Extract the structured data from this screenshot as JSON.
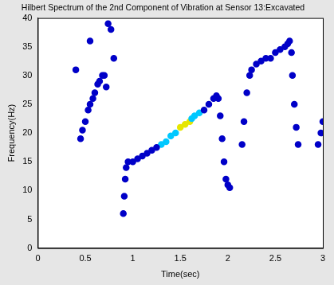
{
  "chart_data": {
    "type": "scatter",
    "title": "Hilbert Spectrum of the 2nd Component of Vibration at Sensor 13:Excavated",
    "x_label": "Time(sec)",
    "y_label": "Frequency(Hz)",
    "xlim": [
      0,
      3
    ],
    "ylim": [
      0,
      40
    ],
    "xticks": [
      0,
      0.5,
      1,
      1.5,
      2,
      2.5,
      3
    ],
    "yticks": [
      0,
      5,
      10,
      15,
      20,
      25,
      30,
      35,
      40
    ],
    "grid": false,
    "series": [
      {
        "color": "#0000c8",
        "marker": "circle",
        "x": [
          0.45,
          0.47,
          0.5,
          0.53,
          0.55,
          0.58,
          0.6,
          0.63,
          0.65,
          0.68,
          0.7,
          0.72,
          0.4,
          0.55,
          0.74,
          0.77,
          0.8,
          0.9,
          0.91,
          0.92,
          0.93,
          0.95,
          1.0,
          1.05,
          1.1,
          1.15,
          1.2,
          1.25,
          1.75,
          1.8,
          1.85,
          1.88,
          1.9,
          1.92,
          1.94,
          1.96,
          1.98,
          2.0,
          2.02,
          2.15,
          2.17,
          2.2,
          2.23,
          2.25,
          2.3,
          2.35,
          2.4,
          2.45,
          2.5,
          2.55,
          2.6,
          2.63,
          2.65,
          2.67,
          2.68,
          2.7,
          2.72,
          2.74,
          2.95,
          2.98,
          3.0
        ],
        "values": [
          19,
          20.5,
          22,
          24,
          25,
          26,
          27,
          28.5,
          29,
          30,
          30,
          28,
          31,
          36,
          39,
          38,
          33,
          6,
          9,
          12,
          14,
          15,
          15,
          15.5,
          16,
          16.5,
          17,
          17.5,
          24,
          25,
          26,
          26.5,
          26,
          23,
          19,
          15,
          12,
          11,
          10.5,
          18,
          22,
          27,
          30,
          31,
          32,
          32.5,
          33,
          33,
          34,
          34.5,
          35,
          35.5,
          36,
          34,
          30,
          25,
          21,
          18,
          18,
          20,
          22
        ]
      },
      {
        "color": "#00c8ff",
        "marker": "circle",
        "x": [
          1.3,
          1.35,
          1.4,
          1.45,
          1.62,
          1.65,
          1.7
        ],
        "values": [
          18,
          18.5,
          19.5,
          20,
          22.5,
          23,
          23.5
        ]
      },
      {
        "color": "#e6e600",
        "marker": "circle",
        "x": [
          1.5,
          1.55,
          1.6
        ],
        "values": [
          21,
          21.5,
          22
        ]
      }
    ]
  }
}
